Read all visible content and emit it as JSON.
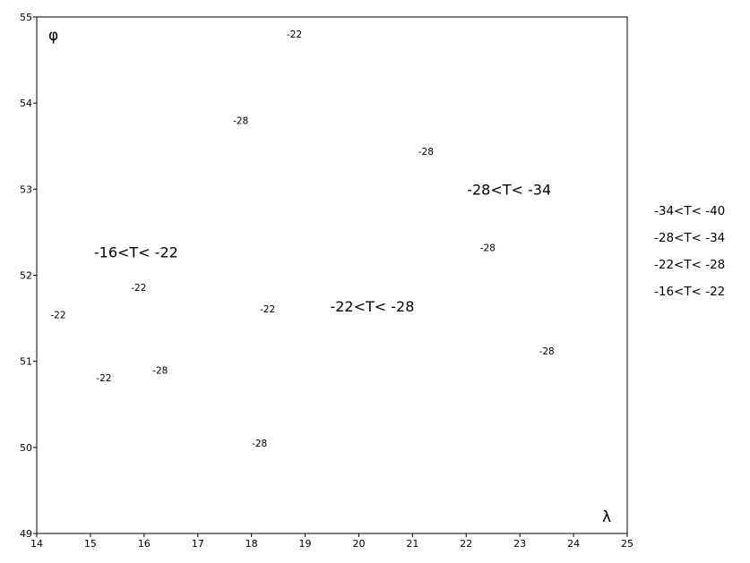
{
  "chart_data": {
    "type": "scatter",
    "xlim": [
      14,
      25
    ],
    "ylim": [
      49,
      55
    ],
    "x_ticks": [
      14,
      15,
      16,
      17,
      18,
      19,
      20,
      21,
      22,
      23,
      24,
      25
    ],
    "y_ticks": [
      49,
      50,
      51,
      52,
      53,
      54,
      55
    ],
    "xlabel": "λ",
    "ylabel": "φ",
    "grid": false,
    "points": [
      {
        "x": 18.8,
        "y": 54.8,
        "label": "-22"
      },
      {
        "x": 17.8,
        "y": 53.8,
        "label": "-28"
      },
      {
        "x": 21.25,
        "y": 53.44,
        "label": "-28"
      },
      {
        "x": 22.4,
        "y": 52.32,
        "label": "-28"
      },
      {
        "x": 15.9,
        "y": 51.86,
        "label": "-22"
      },
      {
        "x": 14.4,
        "y": 51.54,
        "label": "-22"
      },
      {
        "x": 18.3,
        "y": 51.61,
        "label": "-22"
      },
      {
        "x": 23.5,
        "y": 51.12,
        "label": "-28"
      },
      {
        "x": 16.3,
        "y": 50.9,
        "label": "-28"
      },
      {
        "x": 15.25,
        "y": 50.81,
        "label": "-22"
      },
      {
        "x": 18.15,
        "y": 50.05,
        "label": "-28"
      }
    ],
    "region_labels": [
      {
        "x": 22.8,
        "y": 53.0,
        "text": "-28<T< -34"
      },
      {
        "x": 15.85,
        "y": 52.27,
        "text": "-16<T< -22"
      },
      {
        "x": 20.25,
        "y": 51.64,
        "text": "-22<T< -28"
      }
    ],
    "legend": {
      "placement": "right",
      "entries": [
        "-34<T< -40",
        "-28<T< -34",
        "-22<T< -28",
        "-16<T< -22"
      ]
    }
  }
}
